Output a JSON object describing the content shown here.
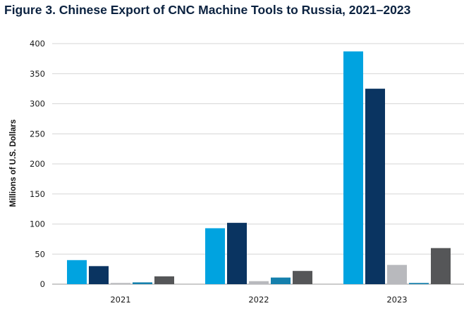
{
  "chart_data": {
    "type": "bar",
    "title": "Figure 3. Chinese Export of CNC Machine Tools to Russia, 2021–2023",
    "xlabel": "",
    "ylabel": "Millions of U.S. Dollars",
    "ylim": [
      0,
      400
    ],
    "yticks": [
      0,
      50,
      100,
      150,
      200,
      250,
      300,
      350,
      400
    ],
    "grid": true,
    "legend": "none",
    "categories": [
      "2021",
      "2022",
      "2023"
    ],
    "series": [
      {
        "color": "#00a3e0",
        "values": [
          40,
          93,
          387
        ]
      },
      {
        "color": "#0a3461",
        "values": [
          30,
          102,
          325
        ]
      },
      {
        "color": "#b8b9bd",
        "values": [
          2,
          5,
          32
        ]
      },
      {
        "color": "#1580ad",
        "values": [
          3,
          11,
          2
        ]
      },
      {
        "color": "#555658",
        "values": [
          13,
          22,
          60
        ]
      }
    ]
  }
}
